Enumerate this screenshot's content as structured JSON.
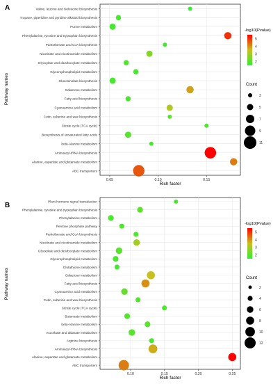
{
  "chart_data": [
    {
      "type": "scatter",
      "panel_label": "A",
      "xlabel": "Rich factor",
      "ylabel": "Pathway names",
      "xlim": [
        0.04,
        0.185
      ],
      "xticks": [
        "0.05",
        "0.10",
        "0.15"
      ],
      "xtick_values": [
        0.05,
        0.1,
        0.15
      ],
      "grid": true,
      "categories": [
        "Valine, leucine and isoleucine biosynthesis",
        "Tropane, piperidine and pyridine alkaloid biosynthesis",
        "Purine metabolism",
        "Phenylalanine, tyrosine and tryptophan biosynthesis",
        "Pantothenate and CoA biosynthesis",
        "Nicotinate and nicotinamide metabolism",
        "Glyoxylate and dicarboxylate metabolism",
        "Glycerophospholipid metabolism",
        "Glucosinolate biosynthesis",
        "Galactose metabolism",
        "Fatty acid biosynthesis",
        "Cyanoamino acid metabolism",
        "Cutin, suberine and wax biosynthesis",
        "Citrate cycle (TCA cycle)",
        "Biosynthesis of unsaturated fatty acids",
        "beta-Alanine metabolism",
        "Aminoacyl-tRNA biosynthesis",
        "Alanine, aspartate and glutamate metabolism",
        "ABC transporters"
      ],
      "x": [
        0.133,
        0.059,
        0.053,
        0.172,
        0.107,
        0.091,
        0.067,
        0.077,
        0.053,
        0.133,
        0.069,
        0.112,
        0.112,
        0.15,
        0.069,
        0.093,
        0.154,
        0.178,
        0.08
      ],
      "count": [
        3,
        4,
        5,
        6,
        3,
        5,
        4,
        4,
        5,
        6,
        4,
        5,
        3,
        3,
        5,
        3,
        10,
        6,
        10
      ],
      "neglog10_pvalue": [
        1.6,
        1.8,
        1.8,
        5.0,
        1.7,
        2.6,
        1.9,
        1.8,
        1.8,
        3.8,
        1.8,
        3.2,
        2.0,
        1.9,
        2.0,
        1.8,
        5.7,
        4.2,
        4.6
      ],
      "color_legend": {
        "title": "-log10(Pvalue)",
        "ticks": [
          "2",
          "3",
          "4",
          "5"
        ],
        "min": 1.5,
        "max": 5.5
      },
      "size_legend": {
        "title": "Count",
        "labels": [
          "3",
          "5",
          "7",
          "9",
          "11"
        ],
        "values": [
          3,
          5,
          7,
          9,
          11
        ]
      }
    },
    {
      "type": "scatter",
      "panel_label": "B",
      "xlabel": "Rich factor",
      "ylabel": "Pathway names",
      "xlim": [
        0.055,
        0.262
      ],
      "xticks": [
        "0.10",
        "0.15",
        "0.20",
        "0.25"
      ],
      "xtick_values": [
        0.1,
        0.15,
        0.2,
        0.25
      ],
      "grid": true,
      "categories": [
        "Plant hormone signal transduction",
        "Phenylalanine, tyrosine and tryptophan biosynthesis",
        "Phenylalanine metabolism",
        "Pentose phosphate pathway",
        "Pantothenate and CoA biosynthesis",
        "Nicotinate and nicotinamide metabolism",
        "Glyoxylate and dicarboxylate metabolism",
        "Glycerophospholipid metabolism",
        "Glutathione metabolism",
        "Galactose metabolism",
        "Fatty acid biosynthesis",
        "Cyanoamino acid metabolism",
        "Cutin, suberine and wax biosynthesis",
        "Citrate cycle (TCA cycle)",
        "Butanoate metabolism",
        "beta-Alanine metabolism",
        "Ascorbate and aldarate metabolism",
        "Arginine biosynthesis",
        "Aminoacyl-tRNA biosynthesis",
        "Alanine, aspartate and glutamate metabolism",
        "ABC transporters"
      ],
      "x": [
        0.167,
        0.114,
        0.071,
        0.087,
        0.108,
        0.109,
        0.083,
        0.078,
        0.08,
        0.13,
        0.122,
        0.091,
        0.111,
        0.15,
        0.095,
        0.125,
        0.102,
        0.131,
        0.133,
        0.25,
        0.09
      ],
      "count": [
        3,
        5,
        5,
        4,
        4,
        6,
        6,
        5,
        4,
        8,
        8,
        6,
        4,
        4,
        5,
        5,
        6,
        4,
        9,
        8,
        11
      ],
      "neglog10_pvalue": [
        1.8,
        2.1,
        1.8,
        1.9,
        1.9,
        3.0,
        2.0,
        1.8,
        1.7,
        3.5,
        4.0,
        2.2,
        1.9,
        1.9,
        1.9,
        2.0,
        2.0,
        1.8,
        3.7,
        5.6,
        4.2
      ],
      "color_legend": {
        "title": "-log10(Pvalue)",
        "ticks": [
          "2",
          "3",
          "4",
          "5"
        ],
        "min": 1.5,
        "max": 5.5
      },
      "size_legend": {
        "title": "Count",
        "labels": [
          "2",
          "4",
          "6",
          "8",
          "10",
          "12"
        ],
        "values": [
          2,
          4,
          6,
          8,
          10,
          12
        ]
      }
    }
  ],
  "colors": {
    "low": "#33ee33",
    "mid": "#c8c020",
    "high": "#ff0000",
    "panel_background": "#ffffff",
    "panel_border": "#333333",
    "gridline": "#e8e8e8",
    "dot": "#000000"
  }
}
